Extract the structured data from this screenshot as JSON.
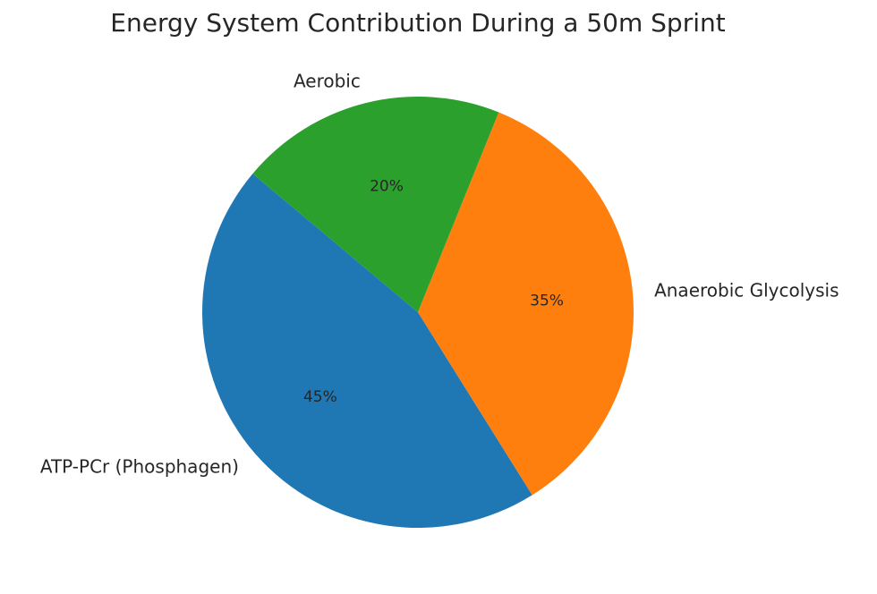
{
  "chart_data": {
    "type": "pie",
    "title": "Energy System Contribution During a 50m Sprint",
    "categories": [
      "ATP-PCr (Phosphagen)",
      "Anaerobic Glycolysis",
      "Aerobic"
    ],
    "values": [
      45,
      35,
      20
    ],
    "value_labels": [
      "45%",
      "35%",
      "20%"
    ],
    "colors": [
      "#1f77b4",
      "#ff7f0e",
      "#2ca02c"
    ]
  }
}
